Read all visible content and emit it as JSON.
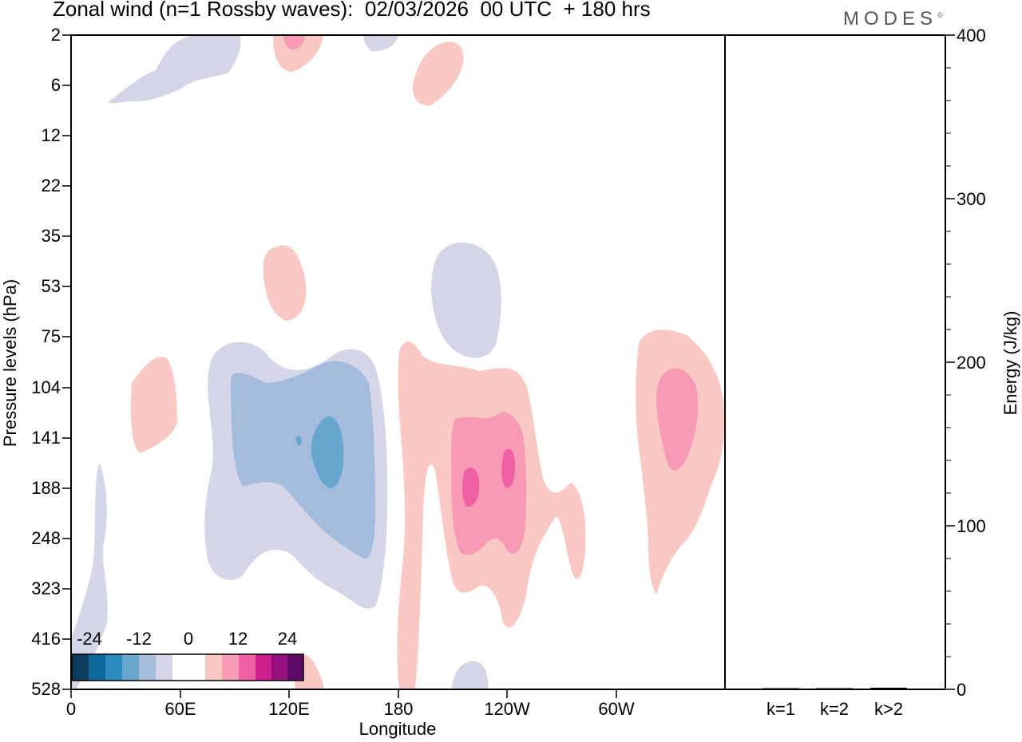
{
  "header": {
    "title": "Zonal wind (n=1 Rossby waves):  02/03/2026  00 UTC  + 180 hrs",
    "logo": "MODES",
    "logo_mark": "©"
  },
  "chart_data": [
    {
      "type": "heatmap",
      "subtype": "filled-contour",
      "title": "Zonal wind (n=1 Rossby waves):  02/03/2026  00 UTC  + 180 hrs",
      "xlabel": "Longitude",
      "ylabel": "Pressure levels (hPa)",
      "x_ticks": [
        "0",
        "60E",
        "120E",
        "180",
        "120W",
        "60W"
      ],
      "x_tick_values": [
        0,
        60,
        120,
        180,
        240,
        300
      ],
      "x_range": [
        0,
        360
      ],
      "y_ticks": [
        "2",
        "6",
        "12",
        "22",
        "35",
        "53",
        "75",
        "104",
        "141",
        "188",
        "248",
        "323",
        "416",
        "528"
      ],
      "y_scale": "pressure-levels (top 2 hPa, bottom 528 hPa)",
      "colorbar": {
        "labels": [
          "-24",
          "-12",
          "0",
          "12",
          "24"
        ],
        "levels": [
          -30,
          -24,
          -18,
          -12,
          -6,
          -3,
          3,
          6,
          12,
          18,
          24,
          30
        ],
        "colors": [
          "#0a3d5c",
          "#0e6a9c",
          "#2b8bc0",
          "#67a7cf",
          "#a4bbdc",
          "#d4d6e8",
          "#ffffff",
          "#f9c8c3",
          "#f79ab3",
          "#ef61a3",
          "#cc1f8d",
          "#950f7d",
          "#5c0a66"
        ]
      },
      "features": [
        {
          "sign": "negative",
          "peak_level": -18,
          "location": "110E-160E",
          "pressure": "75-416 hPa"
        },
        {
          "sign": "positive",
          "peak_level": 18,
          "location": "160W-120W",
          "pressure": "75-416 hPa"
        },
        {
          "sign": "positive",
          "peak_level": 12,
          "location": "30W-0",
          "pressure": "75-323 hPa"
        },
        {
          "sign": "negative",
          "peak_level": -6,
          "location": "160W-140W",
          "pressure": "35-104 hPa"
        },
        {
          "sign": "positive",
          "peak_level": 6,
          "location": "105E-130E",
          "pressure": "35-75 hPa"
        },
        {
          "sign": "positive",
          "peak_level": 6,
          "location": "30E-60E",
          "pressure": "104-188 hPa"
        },
        {
          "sign": "negative",
          "peak_level": -6,
          "location": "20E-90E",
          "pressure": "2-6 hPa"
        },
        {
          "sign": "positive",
          "peak_level": 12,
          "location": "120E-135E",
          "pressure": "2-6 hPa"
        }
      ]
    },
    {
      "type": "bar",
      "ylabel": "Energy (J/kg)",
      "categories": [
        "k=1",
        "k=2",
        "k>2"
      ],
      "values": [
        0.5,
        0.4,
        1.0
      ],
      "ylim": [
        0,
        400
      ],
      "y_ticks": [
        "0",
        "100",
        "200",
        "300",
        "400"
      ],
      "y_tick_values": [
        0,
        100,
        200,
        300,
        400
      ]
    }
  ]
}
